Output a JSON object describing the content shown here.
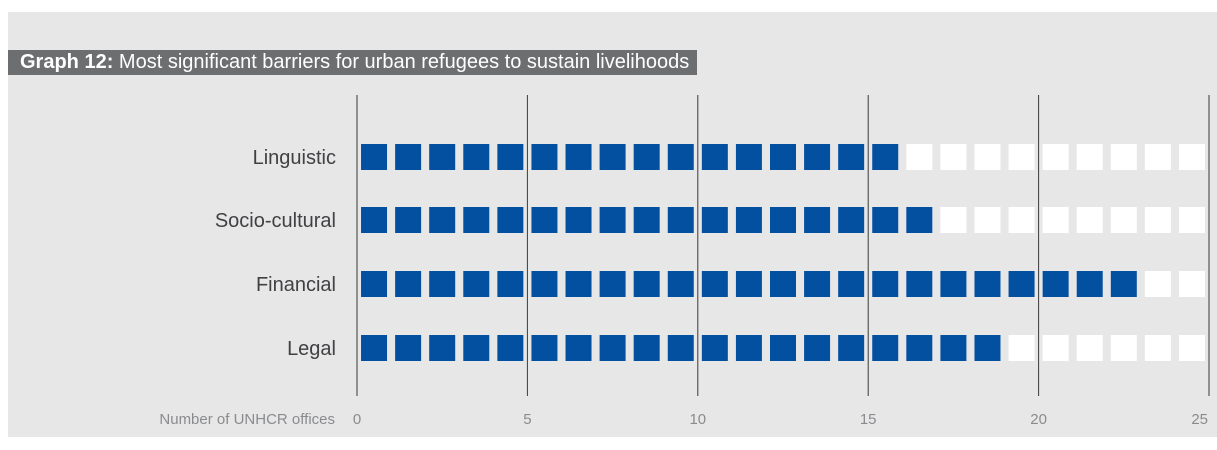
{
  "title": {
    "lead": "Graph 12:",
    "text": "Most significant barriers for urban refugees to sustain livelihoods"
  },
  "chart_data": {
    "type": "bar",
    "orientation": "horizontal",
    "style": "unit-squares",
    "categories": [
      "Linguistic",
      "Socio-cultural",
      "Financial",
      "Legal"
    ],
    "values": [
      16,
      17,
      23,
      19
    ],
    "xlabel": "Number of UNHCR offices",
    "xlim": [
      0,
      25
    ],
    "xticks": [
      0,
      5,
      10,
      15,
      20,
      25
    ],
    "grid": true,
    "colors": {
      "filled": "#0450a0",
      "empty": "#ffffff",
      "grid": "#3a3a3a",
      "panel": "#e7e7e8"
    }
  }
}
